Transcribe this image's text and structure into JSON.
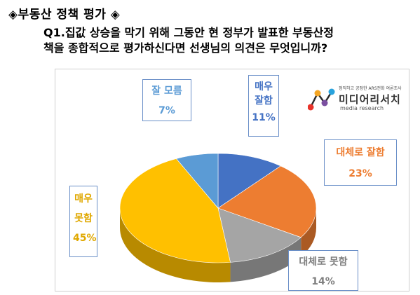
{
  "header": {
    "heading": "◈부동산 정책 평가 ◈",
    "question_line1": "Q1.집값 상승을 막기 위해 그동안 현 정부가 발표한 부동산정",
    "question_line2": "책을 종합적으로 평가하신다면 선생님의 의견은 무엇입니까?"
  },
  "logo": {
    "small_text": "정직하고 공정한 ARS전화 여론조사",
    "name": "미디어리서치",
    "sub": "media research"
  },
  "chart_data": {
    "type": "pie",
    "title": "",
    "slices": [
      {
        "label_line1": "매우",
        "label_line2": "잘함",
        "label": "매우 잘함",
        "value": 11,
        "pct_text": "11%",
        "color": "#4472C4",
        "text_color": "#4472C4"
      },
      {
        "label_line1": "대체로 잘함",
        "label_line2": "",
        "label": "대체로 잘함",
        "value": 23,
        "pct_text": "23%",
        "color": "#ED7D31",
        "text_color": "#ED7D31"
      },
      {
        "label_line1": "대체로 못함",
        "label_line2": "",
        "label": "대체로 못함",
        "value": 14,
        "pct_text": "14%",
        "color": "#A5A5A5",
        "text_color": "#808080"
      },
      {
        "label_line1": "매우",
        "label_line2": "못함",
        "label": "매우 못함",
        "value": 45,
        "pct_text": "45%",
        "color": "#FFC000",
        "text_color": "#E0A800"
      },
      {
        "label_line1": "잘 모름",
        "label_line2": "",
        "label": "잘 모름",
        "value": 7,
        "pct_text": "7%",
        "color": "#5B9BD5",
        "text_color": "#5B9BD5"
      }
    ],
    "legend": "none",
    "style": "3d"
  }
}
